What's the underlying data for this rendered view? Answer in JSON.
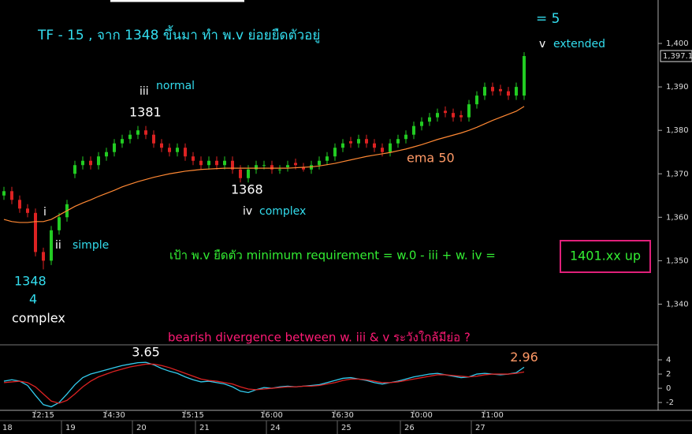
{
  "chart_data": [
    {
      "type": "candlestick",
      "categories": [
        null,
        null,
        null,
        null,
        "12:15",
        null,
        null,
        null,
        null,
        null,
        null,
        null,
        null,
        "14:30",
        null,
        null,
        null,
        null,
        null,
        null,
        null,
        null,
        null,
        "15:15",
        null,
        null,
        null,
        null,
        null,
        null,
        null,
        null,
        null,
        "16:00",
        null,
        null,
        null,
        null,
        null,
        null,
        null,
        null,
        "16:30",
        null,
        null,
        null,
        null,
        null,
        null,
        null,
        null,
        null,
        "10:00",
        null,
        null,
        null,
        null,
        null,
        null,
        null,
        null,
        "11:00",
        null,
        null,
        null,
        null,
        null
      ],
      "dates": [
        "18",
        null,
        null,
        null,
        null,
        null,
        null,
        null,
        "19",
        null,
        null,
        null,
        null,
        null,
        null,
        null,
        null,
        "20",
        null,
        null,
        null,
        null,
        null,
        null,
        null,
        "21",
        null,
        null,
        null,
        null,
        null,
        null,
        null,
        null,
        "24",
        null,
        null,
        null,
        null,
        null,
        null,
        null,
        null,
        "25",
        null,
        null,
        null,
        null,
        null,
        null,
        null,
        "26",
        null,
        null,
        null,
        null,
        null,
        null,
        null,
        null,
        "27",
        null,
        null,
        null,
        null,
        null,
        null
      ],
      "open": [
        1365,
        1366,
        1364,
        1362,
        1361,
        1352,
        1350,
        1357,
        1360,
        1370,
        1372,
        1373,
        1372,
        1374,
        1375,
        1377,
        1378,
        1379,
        1380,
        1379,
        1377,
        1376,
        1375,
        1376,
        1374,
        1373,
        1372,
        1373,
        1372,
        1373,
        1371,
        1369,
        1371,
        1372,
        1372,
        1371,
        1371.5,
        1372.5,
        1371.5,
        1371,
        1372,
        1373,
        1374,
        1376,
        1377.5,
        1377,
        1378,
        1377,
        1376,
        1375,
        1377,
        1378,
        1379,
        1381,
        1382,
        1383,
        1384.5,
        1384,
        1383.5,
        1383,
        1386,
        1388,
        1390,
        1389.5,
        1389,
        1388,
        1388
      ],
      "high": [
        1367,
        1367,
        1365,
        1363,
        1362,
        1353,
        1358,
        1361,
        1364,
        1373,
        1374,
        1374,
        1375,
        1376,
        1378,
        1379,
        1380,
        1381,
        1381,
        1380,
        1378,
        1377,
        1377,
        1377,
        1375,
        1374,
        1374,
        1374,
        1374,
        1374,
        1372,
        1372,
        1373,
        1373,
        1373,
        1372,
        1373,
        1373.5,
        1372.5,
        1373,
        1374,
        1375,
        1377,
        1378,
        1378.5,
        1379,
        1379,
        1378,
        1377,
        1378,
        1379,
        1380,
        1382,
        1383,
        1384,
        1385,
        1385.5,
        1385,
        1384.5,
        1387,
        1389,
        1391,
        1391,
        1390.5,
        1390,
        1391,
        1398
      ],
      "low": [
        1364,
        1363,
        1361,
        1360,
        1351,
        1348,
        1349,
        1356,
        1359,
        1369,
        1371,
        1371,
        1371,
        1373,
        1374,
        1376,
        1377,
        1378,
        1378,
        1376,
        1375,
        1374,
        1374,
        1373,
        1372,
        1371,
        1371,
        1371,
        1371,
        1370,
        1368,
        1368,
        1370,
        1371,
        1370,
        1370,
        1370.5,
        1371,
        1370.5,
        1370,
        1371,
        1372,
        1373,
        1375,
        1376,
        1376,
        1376,
        1375,
        1374,
        1374,
        1376,
        1377,
        1378,
        1380,
        1381,
        1382,
        1383,
        1382,
        1382,
        1382,
        1385,
        1387,
        1388,
        1388,
        1387,
        1387,
        1387
      ],
      "close": [
        1366,
        1364,
        1362,
        1361,
        1352,
        1350,
        1357,
        1360,
        1363,
        1372,
        1373,
        1372,
        1374,
        1375,
        1377,
        1378,
        1379,
        1380,
        1379,
        1377,
        1376,
        1375,
        1376,
        1374,
        1373,
        1372,
        1373,
        1372,
        1373,
        1371,
        1369,
        1371,
        1372,
        1372,
        1371,
        1371,
        1372,
        1372,
        1371,
        1372,
        1373,
        1374,
        1376,
        1377,
        1377,
        1378,
        1377,
        1376,
        1375,
        1377,
        1378,
        1379,
        1381,
        1382,
        1383,
        1384,
        1384,
        1383,
        1383,
        1386,
        1388,
        1390,
        1389,
        1389,
        1388,
        1390,
        1397.1
      ],
      "up_color": "#22cc22",
      "down_color": "#dd2222",
      "ema": {
        "color": "#ff8833",
        "values": [
          1359.5,
          1359,
          1358.8,
          1358.8,
          1359,
          1359,
          1359.5,
          1360.5,
          1361.5,
          1362.5,
          1363.3,
          1364,
          1364.8,
          1365.5,
          1366.2,
          1367,
          1367.6,
          1368.2,
          1368.7,
          1369.2,
          1369.6,
          1370,
          1370.3,
          1370.6,
          1370.8,
          1371,
          1371.1,
          1371.2,
          1371.3,
          1371.3,
          1371.3,
          1371.3,
          1371.3,
          1371.3,
          1371.3,
          1371.3,
          1371.3,
          1371.4,
          1371.5,
          1371.6,
          1371.8,
          1372.1,
          1372.4,
          1372.8,
          1373.2,
          1373.6,
          1374,
          1374.3,
          1374.6,
          1374.9,
          1375.3,
          1375.7,
          1376.2,
          1376.7,
          1377.3,
          1377.9,
          1378.4,
          1378.9,
          1379.4,
          1380,
          1380.7,
          1381.5,
          1382.3,
          1383,
          1383.7,
          1384.4,
          1385.5
        ]
      },
      "ylim": [
        1331,
        1410
      ],
      "yticks": [
        {
          "value": 1340,
          "label": "1,340"
        },
        {
          "value": 1350,
          "label": "1,350"
        },
        {
          "value": 1360,
          "label": "1,360"
        },
        {
          "value": 1370,
          "label": "1,370"
        },
        {
          "value": 1380,
          "label": "1,380"
        },
        {
          "value": 1390,
          "label": "1,390"
        },
        {
          "value": 1400,
          "label": "1,400"
        }
      ],
      "last_price": {
        "value": 1397.1,
        "label": "1,397.1"
      },
      "annotations": [
        "TF - 15 , จาก 1348 ขึ้นมา ทำ พ.v  ย่อยยืดตัวอยู่",
        "= 5",
        "v",
        "extended",
        "iii",
        "normal",
        "1381",
        "1368",
        "iv",
        "complex",
        "i",
        "ii",
        "simple",
        "1348",
        "4",
        "complex",
        "ema 50",
        "เป้า พ.v  ยืดตัว minimum requirement = w.0 - iii  + w. iv  =",
        "1401.xx up",
        "bearish divergence between w. iii & v  ระวังใกล้มีย่อ ?"
      ]
    },
    {
      "type": "line",
      "series": [
        {
          "color": "#33ccee",
          "values": [
            1,
            1.2,
            1,
            0.4,
            -1,
            -2.3,
            -2.6,
            -2,
            -0.8,
            0.5,
            1.5,
            2,
            2.3,
            2.6,
            2.9,
            3.2,
            3.4,
            3.6,
            3.65,
            3.3,
            2.8,
            2.4,
            2.1,
            1.6,
            1.2,
            0.9,
            1,
            0.8,
            0.6,
            0.2,
            -0.4,
            -0.6,
            -0.2,
            0.1,
            0,
            0.2,
            0.3,
            0.2,
            0.3,
            0.4,
            0.5,
            0.8,
            1.1,
            1.4,
            1.5,
            1.3,
            1.1,
            0.8,
            0.6,
            0.8,
            1,
            1.3,
            1.6,
            1.8,
            2,
            2.1,
            1.9,
            1.7,
            1.5,
            1.6,
            2,
            2.1,
            2,
            1.9,
            2,
            2.2,
            2.96
          ],
          "value_labels": [
            null,
            null,
            null,
            null,
            null,
            null,
            null,
            null,
            null,
            null,
            null,
            null,
            null,
            null,
            null,
            null,
            null,
            null,
            "3.65",
            null,
            null,
            null,
            null,
            null,
            null,
            null,
            null,
            null,
            null,
            null,
            null,
            null,
            null,
            null,
            null,
            null,
            null,
            null,
            null,
            null,
            null,
            null,
            null,
            null,
            null,
            null,
            null,
            null,
            null,
            null,
            null,
            null,
            null,
            null,
            null,
            null,
            null,
            null,
            null,
            null,
            null,
            null,
            null,
            null,
            null,
            null,
            "2.96"
          ]
        },
        {
          "color": "#dd2222",
          "values": [
            0.8,
            0.9,
            1,
            0.8,
            0.2,
            -0.8,
            -1.8,
            -2.1,
            -1.7,
            -0.8,
            0.2,
            1,
            1.6,
            2,
            2.4,
            2.7,
            3,
            3.2,
            3.4,
            3.4,
            3.2,
            2.9,
            2.5,
            2.1,
            1.7,
            1.3,
            1.1,
            1,
            0.8,
            0.6,
            0.2,
            -0.1,
            -0.2,
            -0.1,
            0,
            0.1,
            0.2,
            0.2,
            0.3,
            0.3,
            0.4,
            0.6,
            0.8,
            1.1,
            1.3,
            1.3,
            1.2,
            1,
            0.8,
            0.8,
            0.9,
            1.1,
            1.3,
            1.5,
            1.7,
            1.9,
            1.9,
            1.8,
            1.7,
            1.6,
            1.7,
            1.9,
            2,
            2,
            2,
            2.1,
            2.3
          ]
        }
      ],
      "ylim": [
        -3.1,
        6
      ],
      "yticks": [
        -2,
        0,
        2,
        4
      ]
    }
  ]
}
